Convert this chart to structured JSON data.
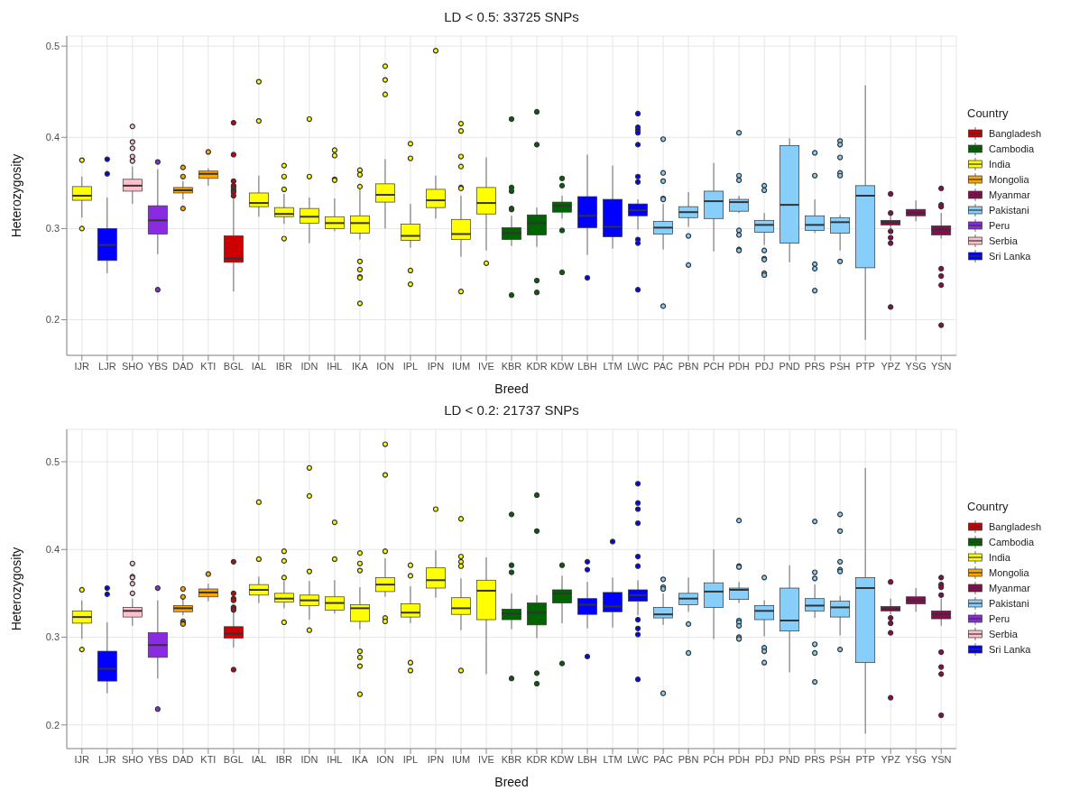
{
  "chart_data": [
    {
      "type": "box",
      "title": "LD < 0.5: 33725 SNPs",
      "xlabel": "Breed",
      "ylabel": "Heterozygosity",
      "legend_title": "Country",
      "legend": "right",
      "grid": true,
      "categories": [
        "IJR",
        "LJR",
        "SHO",
        "YBS",
        "DAD",
        "KTI",
        "BGL",
        "IAL",
        "IBR",
        "IDN",
        "IHL",
        "IKA",
        "ION",
        "IPL",
        "IPN",
        "IUM",
        "IVE",
        "KBR",
        "KDR",
        "KDW",
        "LBH",
        "LTM",
        "LWC",
        "PAC",
        "PBN",
        "PCH",
        "PDH",
        "PDJ",
        "PND",
        "PRS",
        "PSH",
        "PTP",
        "YPZ",
        "YSG",
        "YSN"
      ],
      "ylim": [
        0.161,
        0.511
      ],
      "yticks": [
        0.2,
        0.3,
        0.4,
        0.5
      ],
      "series": [
        {
          "name": "Bangladesh",
          "color": "#cc0000",
          "boxes": [
            null,
            null,
            null,
            null,
            null,
            null,
            {
              "low": 0.231,
              "q1": 0.263,
              "median": 0.267,
              "q3": 0.292,
              "high": 0.334,
              "outliers": [
                0.416,
                0.381,
                0.352,
                0.347,
                0.345,
                0.342,
                0.34,
                0.336
              ]
            },
            null,
            null,
            null,
            null,
            null,
            null,
            null,
            null,
            null,
            null,
            null,
            null,
            null,
            null,
            null,
            null,
            null,
            null,
            null,
            null,
            null,
            null,
            null,
            null,
            null,
            null,
            null,
            null
          ]
        },
        {
          "name": "Cambodia",
          "color": "#006400",
          "boxes": [
            null,
            null,
            null,
            null,
            null,
            null,
            null,
            null,
            null,
            null,
            null,
            null,
            null,
            null,
            null,
            null,
            null,
            {
              "low": 0.281,
              "q1": 0.288,
              "median": 0.295,
              "q3": 0.301,
              "high": 0.314,
              "outliers": [
                0.42,
                0.345,
                0.341,
                0.322,
                0.321,
                0.227
              ]
            },
            {
              "low": 0.28,
              "q1": 0.293,
              "median": 0.306,
              "q3": 0.315,
              "high": 0.323,
              "outliers": [
                0.428,
                0.392,
                0.243,
                0.23
              ]
            },
            {
              "low": 0.311,
              "q1": 0.318,
              "median": 0.325,
              "q3": 0.329,
              "high": 0.336,
              "outliers": [
                0.355,
                0.347,
                0.298,
                0.252
              ]
            },
            null,
            null,
            null,
            null,
            null,
            null,
            null,
            null,
            null,
            null,
            null,
            null,
            null,
            null,
            null
          ]
        },
        {
          "name": "India",
          "color": "#ffff00",
          "boxes": [
            {
              "low": 0.312,
              "q1": 0.331,
              "median": 0.336,
              "q3": 0.346,
              "high": 0.357,
              "outliers": [
                0.375,
                0.3
              ]
            },
            null,
            null,
            null,
            null,
            null,
            null,
            {
              "low": 0.313,
              "q1": 0.324,
              "median": 0.328,
              "q3": 0.339,
              "high": 0.358,
              "outliers": [
                0.461,
                0.418
              ]
            },
            {
              "low": 0.305,
              "q1": 0.313,
              "median": 0.316,
              "q3": 0.323,
              "high": 0.338,
              "outliers": [
                0.369,
                0.357,
                0.343,
                0.289
              ]
            },
            {
              "low": 0.284,
              "q1": 0.306,
              "median": 0.313,
              "q3": 0.322,
              "high": 0.334,
              "outliers": [
                0.42,
                0.357
              ]
            },
            {
              "low": 0.297,
              "q1": 0.3,
              "median": 0.306,
              "q3": 0.313,
              "high": 0.333,
              "outliers": [
                0.386,
                0.38,
                0.354,
                0.353
              ]
            },
            {
              "low": 0.288,
              "q1": 0.295,
              "median": 0.306,
              "q3": 0.314,
              "high": 0.343,
              "outliers": [
                0.364,
                0.359,
                0.346,
                0.264,
                0.255,
                0.247,
                0.246,
                0.218
              ]
            },
            {
              "low": 0.3,
              "q1": 0.329,
              "median": 0.337,
              "q3": 0.349,
              "high": 0.376,
              "outliers": [
                0.478,
                0.463,
                0.447
              ]
            },
            {
              "low": 0.279,
              "q1": 0.287,
              "median": 0.292,
              "q3": 0.305,
              "high": 0.327,
              "outliers": [
                0.393,
                0.377,
                0.254,
                0.239
              ]
            },
            {
              "low": 0.311,
              "q1": 0.323,
              "median": 0.331,
              "q3": 0.343,
              "high": 0.358,
              "outliers": [
                0.495
              ]
            },
            {
              "low": 0.269,
              "q1": 0.288,
              "median": 0.294,
              "q3": 0.31,
              "high": 0.336,
              "outliers": [
                0.415,
                0.407,
                0.379,
                0.368,
                0.345,
                0.344,
                0.231
              ]
            },
            {
              "low": 0.276,
              "q1": 0.316,
              "median": 0.328,
              "q3": 0.345,
              "high": 0.378,
              "outliers": [
                0.262
              ]
            },
            null,
            null,
            null,
            null,
            null,
            null,
            null,
            null,
            null,
            null,
            null,
            null,
            null,
            null,
            null,
            null,
            null,
            null
          ]
        },
        {
          "name": "Mongolia",
          "color": "#ffa500",
          "boxes": [
            null,
            null,
            null,
            null,
            {
              "low": 0.332,
              "q1": 0.339,
              "median": 0.342,
              "q3": 0.345,
              "high": 0.352,
              "outliers": [
                0.367,
                0.357,
                0.322
              ]
            },
            {
              "low": 0.347,
              "q1": 0.355,
              "median": 0.36,
              "q3": 0.363,
              "high": 0.366,
              "outliers": [
                0.384
              ]
            },
            null,
            null,
            null,
            null,
            null,
            null,
            null,
            null,
            null,
            null,
            null,
            null,
            null,
            null,
            null,
            null,
            null,
            null,
            null,
            null,
            null,
            null,
            null,
            null,
            null,
            null,
            null,
            null,
            null
          ]
        },
        {
          "name": "Myanmar",
          "color": "#8b0a50",
          "boxes": [
            null,
            null,
            null,
            null,
            null,
            null,
            null,
            null,
            null,
            null,
            null,
            null,
            null,
            null,
            null,
            null,
            null,
            null,
            null,
            null,
            null,
            null,
            null,
            null,
            null,
            null,
            null,
            null,
            null,
            null,
            null,
            null,
            {
              "low": 0.3,
              "q1": 0.304,
              "median": 0.307,
              "q3": 0.309,
              "high": 0.314,
              "outliers": [
                0.338,
                0.317,
                0.297,
                0.29,
                0.284,
                0.214
              ]
            },
            {
              "low": 0.308,
              "q1": 0.314,
              "median": 0.317,
              "q3": 0.321,
              "high": 0.331
            },
            {
              "low": 0.289,
              "q1": 0.293,
              "median": 0.299,
              "q3": 0.303,
              "high": 0.317,
              "outliers": [
                0.344,
                0.326,
                0.324,
                0.256,
                0.248,
                0.238,
                0.194
              ]
            }
          ]
        },
        {
          "name": "Pakistani",
          "color": "#87cefa",
          "boxes": [
            null,
            null,
            null,
            null,
            null,
            null,
            null,
            null,
            null,
            null,
            null,
            null,
            null,
            null,
            null,
            null,
            null,
            null,
            null,
            null,
            null,
            null,
            null,
            {
              "low": 0.277,
              "q1": 0.294,
              "median": 0.301,
              "q3": 0.308,
              "high": 0.327,
              "outliers": [
                0.398,
                0.361,
                0.352,
                0.333,
                0.332,
                0.215
              ]
            },
            {
              "low": 0.302,
              "q1": 0.312,
              "median": 0.318,
              "q3": 0.324,
              "high": 0.34,
              "outliers": [
                0.292,
                0.26
              ]
            },
            {
              "low": 0.275,
              "q1": 0.311,
              "median": 0.33,
              "q3": 0.341,
              "high": 0.372
            },
            {
              "low": 0.317,
              "q1": 0.319,
              "median": 0.329,
              "q3": 0.332,
              "high": 0.336,
              "outliers": [
                0.405,
                0.358,
                0.353,
                0.298,
                0.293,
                0.277,
                0.276
              ]
            },
            {
              "low": 0.282,
              "q1": 0.296,
              "median": 0.304,
              "q3": 0.309,
              "high": 0.317,
              "outliers": [
                0.347,
                0.342,
                0.276,
                0.267,
                0.266,
                0.251,
                0.249
              ]
            },
            {
              "low": 0.263,
              "q1": 0.284,
              "median": 0.326,
              "q3": 0.391,
              "high": 0.399
            },
            {
              "low": 0.295,
              "q1": 0.298,
              "median": 0.304,
              "q3": 0.314,
              "high": 0.332,
              "outliers": [
                0.383,
                0.358,
                0.261,
                0.256,
                0.232
              ]
            },
            {
              "low": 0.276,
              "q1": 0.295,
              "median": 0.307,
              "q3": 0.312,
              "high": 0.315,
              "outliers": [
                0.396,
                0.392,
                0.378,
                0.361,
                0.358,
                0.264
              ]
            },
            {
              "low": 0.178,
              "q1": 0.257,
              "median": 0.336,
              "q3": 0.347,
              "high": 0.457
            },
            null,
            null,
            null
          ]
        },
        {
          "name": "Peru",
          "color": "#8a2be2",
          "boxes": [
            null,
            null,
            null,
            {
              "low": 0.272,
              "q1": 0.294,
              "median": 0.309,
              "q3": 0.325,
              "high": 0.365,
              "outliers": [
                0.373,
                0.233
              ]
            },
            null,
            null,
            null,
            null,
            null,
            null,
            null,
            null,
            null,
            null,
            null,
            null,
            null,
            null,
            null,
            null,
            null,
            null,
            null,
            null,
            null,
            null,
            null,
            null,
            null,
            null,
            null,
            null,
            null,
            null,
            null
          ]
        },
        {
          "name": "Serbia",
          "color": "#ffc0cb",
          "boxes": [
            null,
            null,
            {
              "low": 0.327,
              "q1": 0.341,
              "median": 0.347,
              "q3": 0.354,
              "high": 0.368,
              "outliers": [
                0.412,
                0.395,
                0.388,
                0.379,
                0.374
              ]
            },
            null,
            null,
            null,
            null,
            null,
            null,
            null,
            null,
            null,
            null,
            null,
            null,
            null,
            null,
            null,
            null,
            null,
            null,
            null,
            null,
            null,
            null,
            null,
            null,
            null,
            null,
            null,
            null,
            null,
            null,
            null,
            null
          ]
        },
        {
          "name": "Sri Lanka",
          "color": "#0000ff",
          "boxes": [
            null,
            {
              "low": 0.251,
              "q1": 0.265,
              "median": 0.282,
              "q3": 0.3,
              "high": 0.334,
              "outliers": [
                0.376,
                0.36
              ]
            },
            null,
            null,
            null,
            null,
            null,
            null,
            null,
            null,
            null,
            null,
            null,
            null,
            null,
            null,
            null,
            null,
            null,
            null,
            {
              "low": 0.271,
              "q1": 0.301,
              "median": 0.314,
              "q3": 0.335,
              "high": 0.381,
              "outliers": [
                0.246
              ]
            },
            {
              "low": 0.278,
              "q1": 0.291,
              "median": 0.302,
              "q3": 0.332,
              "high": 0.369
            },
            {
              "low": 0.299,
              "q1": 0.314,
              "median": 0.32,
              "q3": 0.327,
              "high": 0.332,
              "outliers": [
                0.426,
                0.411,
                0.408,
                0.405,
                0.392,
                0.357,
                0.351,
                0.288,
                0.284,
                0.233
              ]
            },
            null,
            null,
            null,
            null,
            null,
            null,
            null,
            null,
            null,
            null,
            null,
            null
          ]
        }
      ]
    },
    {
      "type": "box",
      "title": "LD < 0.2: 21737 SNPs",
      "xlabel": "Breed",
      "ylabel": "Heterozygosity",
      "legend_title": "Country",
      "legend": "right",
      "grid": true,
      "categories": [
        "IJR",
        "LJR",
        "SHO",
        "YBS",
        "DAD",
        "KTI",
        "BGL",
        "IAL",
        "IBR",
        "IDN",
        "IHL",
        "IKA",
        "ION",
        "IPL",
        "IPN",
        "IUM",
        "IVE",
        "KBR",
        "KDR",
        "KDW",
        "LBH",
        "LTM",
        "LWC",
        "PAC",
        "PBN",
        "PCH",
        "PDH",
        "PDJ",
        "PND",
        "PRS",
        "PSH",
        "PTP",
        "YPZ",
        "YSG",
        "YSN"
      ],
      "ylim": [
        0.173,
        0.537
      ],
      "yticks": [
        0.2,
        0.3,
        0.4,
        0.5
      ],
      "series": [
        {
          "name": "Bangladesh",
          "color": "#cc0000",
          "boxes": [
            null,
            null,
            null,
            null,
            null,
            null,
            {
              "low": 0.288,
              "q1": 0.299,
              "median": 0.304,
              "q3": 0.312,
              "high": 0.328,
              "outliers": [
                0.386,
                0.35,
                0.344,
                0.342,
                0.334,
                0.333,
                0.331,
                0.263
              ]
            },
            null,
            null,
            null,
            null,
            null,
            null,
            null,
            null,
            null,
            null,
            null,
            null,
            null,
            null,
            null,
            null,
            null,
            null,
            null,
            null,
            null,
            null,
            null,
            null,
            null,
            null,
            null,
            null
          ]
        },
        {
          "name": "Cambodia",
          "color": "#006400",
          "boxes": [
            null,
            null,
            null,
            null,
            null,
            null,
            null,
            null,
            null,
            null,
            null,
            null,
            null,
            null,
            null,
            null,
            null,
            {
              "low": 0.309,
              "q1": 0.32,
              "median": 0.327,
              "q3": 0.332,
              "high": 0.35,
              "outliers": [
                0.44,
                0.382,
                0.374,
                0.253
              ]
            },
            {
              "low": 0.299,
              "q1": 0.314,
              "median": 0.328,
              "q3": 0.339,
              "high": 0.348,
              "outliers": [
                0.462,
                0.421,
                0.259,
                0.247
              ]
            },
            {
              "low": 0.316,
              "q1": 0.339,
              "median": 0.35,
              "q3": 0.354,
              "high": 0.37,
              "outliers": [
                0.382,
                0.27
              ]
            },
            null,
            null,
            null,
            null,
            null,
            null,
            null,
            null,
            null,
            null,
            null,
            null,
            null,
            null,
            null
          ]
        },
        {
          "name": "India",
          "color": "#ffff00",
          "boxes": [
            {
              "low": 0.298,
              "q1": 0.316,
              "median": 0.323,
              "q3": 0.33,
              "high": 0.342,
              "outliers": [
                0.354,
                0.286
              ]
            },
            null,
            null,
            null,
            null,
            null,
            null,
            {
              "low": 0.339,
              "q1": 0.348,
              "median": 0.354,
              "q3": 0.36,
              "high": 0.369,
              "outliers": [
                0.454,
                0.389
              ]
            },
            {
              "low": 0.333,
              "q1": 0.34,
              "median": 0.344,
              "q3": 0.35,
              "high": 0.364,
              "outliers": [
                0.398,
                0.387,
                0.368,
                0.317
              ]
            },
            {
              "low": 0.32,
              "q1": 0.336,
              "median": 0.342,
              "q3": 0.348,
              "high": 0.364,
              "outliers": [
                0.493,
                0.461,
                0.375,
                0.308
              ]
            },
            {
              "low": 0.327,
              "q1": 0.331,
              "median": 0.339,
              "q3": 0.346,
              "high": 0.365,
              "outliers": [
                0.431,
                0.389
              ]
            },
            {
              "low": 0.309,
              "q1": 0.318,
              "median": 0.333,
              "q3": 0.337,
              "high": 0.357,
              "outliers": [
                0.396,
                0.384,
                0.376,
                0.284,
                0.277,
                0.267,
                0.235
              ]
            },
            {
              "low": 0.346,
              "q1": 0.352,
              "median": 0.36,
              "q3": 0.368,
              "high": 0.39,
              "outliers": [
                0.52,
                0.485,
                0.398,
                0.322,
                0.318
              ]
            },
            {
              "low": 0.316,
              "q1": 0.323,
              "median": 0.328,
              "q3": 0.338,
              "high": 0.358,
              "outliers": [
                0.382,
                0.37,
                0.271,
                0.262
              ]
            },
            {
              "low": 0.345,
              "q1": 0.356,
              "median": 0.365,
              "q3": 0.379,
              "high": 0.399,
              "outliers": [
                0.446
              ]
            },
            {
              "low": 0.308,
              "q1": 0.326,
              "median": 0.333,
              "q3": 0.345,
              "high": 0.367,
              "outliers": [
                0.435,
                0.392,
                0.386,
                0.381,
                0.262
              ]
            },
            {
              "low": 0.258,
              "q1": 0.32,
              "median": 0.353,
              "q3": 0.365,
              "high": 0.391
            },
            null,
            null,
            null,
            null,
            null,
            null,
            null,
            null,
            null,
            null,
            null,
            null,
            null,
            null,
            null,
            null,
            null,
            null
          ]
        },
        {
          "name": "Mongolia",
          "color": "#ffa500",
          "boxes": [
            null,
            null,
            null,
            null,
            {
              "low": 0.325,
              "q1": 0.329,
              "median": 0.333,
              "q3": 0.336,
              "high": 0.344,
              "outliers": [
                0.355,
                0.346,
                0.318,
                0.316,
                0.315
              ]
            },
            {
              "low": 0.341,
              "q1": 0.346,
              "median": 0.351,
              "q3": 0.355,
              "high": 0.361,
              "outliers": [
                0.372
              ]
            },
            null,
            null,
            null,
            null,
            null,
            null,
            null,
            null,
            null,
            null,
            null,
            null,
            null,
            null,
            null,
            null,
            null,
            null,
            null,
            null,
            null,
            null,
            null,
            null,
            null,
            null,
            null,
            null,
            null
          ]
        },
        {
          "name": "Myanmar",
          "color": "#8b0a50",
          "boxes": [
            null,
            null,
            null,
            null,
            null,
            null,
            null,
            null,
            null,
            null,
            null,
            null,
            null,
            null,
            null,
            null,
            null,
            null,
            null,
            null,
            null,
            null,
            null,
            null,
            null,
            null,
            null,
            null,
            null,
            null,
            null,
            null,
            {
              "low": 0.326,
              "q1": 0.33,
              "median": 0.332,
              "q3": 0.335,
              "high": 0.344,
              "outliers": [
                0.363,
                0.322,
                0.316,
                0.305,
                0.231
              ]
            },
            {
              "low": 0.329,
              "q1": 0.338,
              "median": 0.342,
              "q3": 0.346,
              "high": 0.356
            },
            {
              "low": 0.313,
              "q1": 0.321,
              "median": 0.326,
              "q3": 0.33,
              "high": 0.344,
              "outliers": [
                0.368,
                0.36,
                0.357,
                0.348,
                0.283,
                0.266,
                0.258,
                0.211
              ]
            }
          ]
        },
        {
          "name": "Pakistani",
          "color": "#87cefa",
          "boxes": [
            null,
            null,
            null,
            null,
            null,
            null,
            null,
            null,
            null,
            null,
            null,
            null,
            null,
            null,
            null,
            null,
            null,
            null,
            null,
            null,
            null,
            null,
            null,
            {
              "low": 0.314,
              "q1": 0.322,
              "median": 0.326,
              "q3": 0.334,
              "high": 0.35,
              "outliers": [
                0.366,
                0.357,
                0.355,
                0.236
              ]
            },
            {
              "low": 0.329,
              "q1": 0.337,
              "median": 0.344,
              "q3": 0.35,
              "high": 0.368,
              "outliers": [
                0.315,
                0.282
              ]
            },
            {
              "low": 0.298,
              "q1": 0.334,
              "median": 0.352,
              "q3": 0.362,
              "high": 0.4
            },
            {
              "low": 0.339,
              "q1": 0.343,
              "median": 0.354,
              "q3": 0.356,
              "high": 0.363,
              "outliers": [
                0.433,
                0.381,
                0.38,
                0.319,
                0.317,
                0.313,
                0.3,
                0.298
              ]
            },
            {
              "low": 0.301,
              "q1": 0.32,
              "median": 0.33,
              "q3": 0.336,
              "high": 0.342,
              "outliers": [
                0.368,
                0.288,
                0.284,
                0.271
              ]
            },
            {
              "low": 0.26,
              "q1": 0.307,
              "median": 0.319,
              "q3": 0.356,
              "high": 0.382
            },
            {
              "low": 0.322,
              "q1": 0.33,
              "median": 0.336,
              "q3": 0.344,
              "high": 0.36,
              "outliers": [
                0.432,
                0.374,
                0.367,
                0.292,
                0.282,
                0.249
              ]
            },
            {
              "low": 0.302,
              "q1": 0.323,
              "median": 0.334,
              "q3": 0.341,
              "high": 0.347,
              "outliers": [
                0.44,
                0.421,
                0.386,
                0.377,
                0.375,
                0.286
              ]
            },
            {
              "low": 0.19,
              "q1": 0.271,
              "median": 0.356,
              "q3": 0.368,
              "high": 0.493
            },
            null,
            null,
            null
          ]
        },
        {
          "name": "Peru",
          "color": "#8a2be2",
          "boxes": [
            null,
            null,
            null,
            {
              "low": 0.253,
              "q1": 0.277,
              "median": 0.291,
              "q3": 0.305,
              "high": 0.342,
              "outliers": [
                0.356,
                0.218
              ]
            },
            null,
            null,
            null,
            null,
            null,
            null,
            null,
            null,
            null,
            null,
            null,
            null,
            null,
            null,
            null,
            null,
            null,
            null,
            null,
            null,
            null,
            null,
            null,
            null,
            null,
            null,
            null,
            null,
            null,
            null,
            null
          ]
        },
        {
          "name": "Serbia",
          "color": "#ffc0cb",
          "boxes": [
            null,
            null,
            {
              "low": 0.313,
              "q1": 0.323,
              "median": 0.33,
              "q3": 0.334,
              "high": 0.344,
              "outliers": [
                0.384,
                0.369,
                0.368,
                0.361,
                0.35
              ]
            },
            null,
            null,
            null,
            null,
            null,
            null,
            null,
            null,
            null,
            null,
            null,
            null,
            null,
            null,
            null,
            null,
            null,
            null,
            null,
            null,
            null,
            null,
            null,
            null,
            null,
            null,
            null,
            null,
            null,
            null,
            null,
            null
          ]
        },
        {
          "name": "Sri Lanka",
          "color": "#0000ff",
          "boxes": [
            null,
            {
              "low": 0.236,
              "q1": 0.25,
              "median": 0.264,
              "q3": 0.284,
              "high": 0.317,
              "outliers": [
                0.356,
                0.349
              ]
            },
            null,
            null,
            null,
            null,
            null,
            null,
            null,
            null,
            null,
            null,
            null,
            null,
            null,
            null,
            null,
            null,
            null,
            null,
            {
              "low": 0.31,
              "q1": 0.326,
              "median": 0.337,
              "q3": 0.344,
              "high": 0.363,
              "outliers": [
                0.386,
                0.377,
                0.278
              ]
            },
            {
              "low": 0.311,
              "q1": 0.329,
              "median": 0.335,
              "q3": 0.351,
              "high": 0.368,
              "outliers": [
                0.409
              ]
            },
            {
              "low": 0.325,
              "q1": 0.341,
              "median": 0.348,
              "q3": 0.354,
              "high": 0.365,
              "outliers": [
                0.475,
                0.453,
                0.446,
                0.43,
                0.392,
                0.381,
                0.32,
                0.31,
                0.303,
                0.252
              ]
            },
            null,
            null,
            null,
            null,
            null,
            null,
            null,
            null,
            null,
            null,
            null,
            null
          ]
        }
      ]
    }
  ]
}
